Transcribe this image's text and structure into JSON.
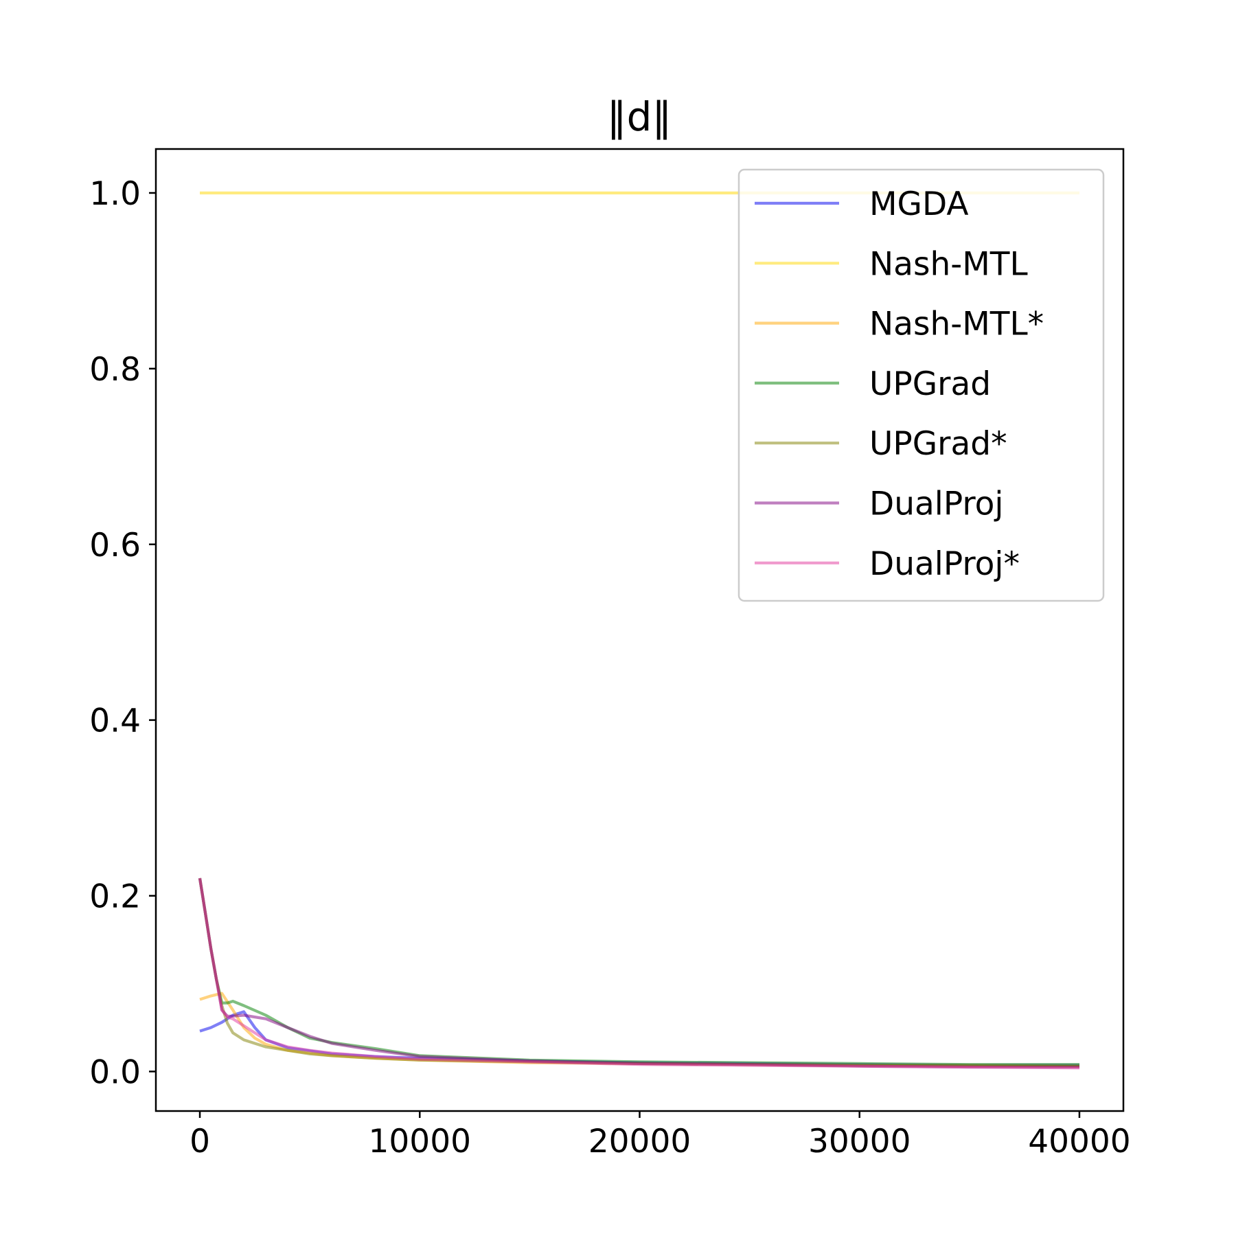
{
  "chart_data": {
    "type": "line",
    "title": "‖d‖",
    "xlabel": "",
    "ylabel": "",
    "xlim": [
      -2000,
      42000
    ],
    "ylim": [
      -0.045,
      1.05
    ],
    "xticks": [
      0,
      10000,
      20000,
      30000,
      40000
    ],
    "xtick_labels": [
      "0",
      "10000",
      "20000",
      "30000",
      "40000"
    ],
    "yticks": [
      0.0,
      0.2,
      0.4,
      0.6,
      0.8,
      1.0
    ],
    "ytick_labels": [
      "0.0",
      "0.2",
      "0.4",
      "0.6",
      "0.8",
      "1.0"
    ],
    "grid": false,
    "legend_position": "upper right",
    "series": [
      {
        "name": "MGDA",
        "color": "#0000ee",
        "alpha": 0.5,
        "x": [
          0,
          500,
          1000,
          1500,
          2000,
          2500,
          3000,
          4000,
          6000,
          8000,
          10000,
          15000,
          20000,
          25000,
          30000,
          35000,
          40000
        ],
        "y": [
          0.046,
          0.05,
          0.056,
          0.064,
          0.068,
          0.05,
          0.036,
          0.027,
          0.02,
          0.017,
          0.015,
          0.012,
          0.01,
          0.009,
          0.008,
          0.007,
          0.007
        ]
      },
      {
        "name": "Nash-MTL",
        "color": "#ffd700",
        "alpha": 0.5,
        "x": [
          0,
          10000,
          20000,
          30000,
          40000
        ],
        "y": [
          1.0,
          1.0,
          1.0,
          1.0,
          1.0
        ]
      },
      {
        "name": "Nash-MTL*",
        "color": "#ffa500",
        "alpha": 0.5,
        "x": [
          0,
          500,
          1000,
          1500,
          2000,
          2500,
          3000,
          4000,
          6000,
          8000,
          10000,
          15000,
          20000,
          25000,
          30000,
          35000,
          40000
        ],
        "y": [
          0.082,
          0.086,
          0.089,
          0.07,
          0.05,
          0.038,
          0.031,
          0.024,
          0.018,
          0.015,
          0.013,
          0.01,
          0.009,
          0.008,
          0.007,
          0.006,
          0.006
        ]
      },
      {
        "name": "UPGrad",
        "color": "#008000",
        "alpha": 0.5,
        "x": [
          0,
          250,
          500,
          750,
          1000,
          1250,
          1500,
          2000,
          3000,
          4000,
          5000,
          6000,
          8000,
          10000,
          15000,
          20000,
          25000,
          30000,
          35000,
          40000
        ],
        "y": [
          0.22,
          0.18,
          0.14,
          0.105,
          0.078,
          0.078,
          0.08,
          0.075,
          0.064,
          0.05,
          0.038,
          0.033,
          0.026,
          0.018,
          0.013,
          0.011,
          0.01,
          0.009,
          0.008,
          0.008
        ]
      },
      {
        "name": "UPGrad*",
        "color": "#808000",
        "alpha": 0.5,
        "x": [
          0,
          250,
          500,
          750,
          1000,
          1250,
          1500,
          2000,
          3000,
          4000,
          5000,
          6000,
          8000,
          10000,
          15000,
          20000,
          25000,
          30000,
          35000,
          40000
        ],
        "y": [
          0.22,
          0.18,
          0.14,
          0.105,
          0.075,
          0.055,
          0.044,
          0.036,
          0.028,
          0.024,
          0.02,
          0.018,
          0.015,
          0.013,
          0.011,
          0.009,
          0.008,
          0.007,
          0.007,
          0.006
        ]
      },
      {
        "name": "DualProj",
        "color": "#800080",
        "alpha": 0.5,
        "x": [
          0,
          250,
          500,
          750,
          1000,
          1250,
          1500,
          2000,
          3000,
          4000,
          5000,
          6000,
          8000,
          10000,
          15000,
          20000,
          25000,
          30000,
          35000,
          40000
        ],
        "y": [
          0.22,
          0.18,
          0.14,
          0.105,
          0.07,
          0.063,
          0.063,
          0.064,
          0.06,
          0.05,
          0.04,
          0.032,
          0.024,
          0.017,
          0.012,
          0.009,
          0.008,
          0.006,
          0.005,
          0.005
        ]
      },
      {
        "name": "DualProj*",
        "color": "#e1359c",
        "alpha": 0.5,
        "x": [
          0,
          250,
          500,
          750,
          1000,
          1250,
          1500,
          2000,
          3000,
          4000,
          5000,
          6000,
          8000,
          10000,
          15000,
          20000,
          25000,
          30000,
          35000,
          40000
        ],
        "y": [
          0.22,
          0.18,
          0.14,
          0.105,
          0.07,
          0.062,
          0.06,
          0.052,
          0.036,
          0.028,
          0.024,
          0.021,
          0.017,
          0.014,
          0.011,
          0.008,
          0.007,
          0.006,
          0.005,
          0.004
        ]
      }
    ]
  }
}
